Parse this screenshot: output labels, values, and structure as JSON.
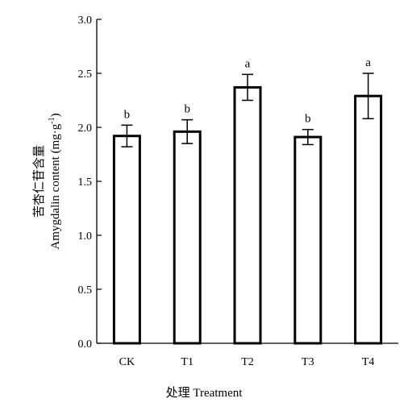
{
  "chart_data": {
    "type": "bar",
    "title": "",
    "categories": [
      "CK",
      "T1",
      "T2",
      "T3",
      "T4"
    ],
    "values": [
      1.92,
      1.96,
      2.37,
      1.91,
      2.29
    ],
    "errors": [
      0.1,
      0.11,
      0.12,
      0.07,
      0.21
    ],
    "significance": [
      "b",
      "b",
      "a",
      "b",
      "a"
    ],
    "ylim": [
      0,
      3.0
    ],
    "yticks": [
      "0.0",
      "0.5",
      "1.0",
      "1.5",
      "2.0",
      "2.5",
      "3.0"
    ],
    "xlabel": "处理 Treatment",
    "ylabel_cn": "苦杏仁苷含量",
    "ylabel_en": "Amygdalin content (mg·g",
    "ylabel_sup": "-1",
    "ylabel_close": ")",
    "bar_fill": "#ffffff",
    "bar_stroke": "#000000",
    "grid": false,
    "legend": "none"
  }
}
